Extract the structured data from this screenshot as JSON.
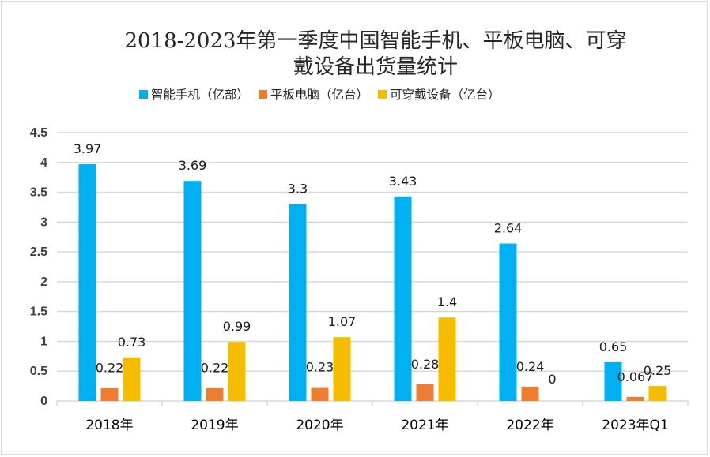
{
  "chart_data": {
    "type": "bar",
    "title": "2018-2023年第一季度中国智能手机、平板电脑、可穿戴设备出货量统计",
    "title_lines": [
      "2018-2023年第一季度中国智能手机、平板电脑、可穿",
      "戴设备出货量统计"
    ],
    "xlabel": "",
    "ylabel": "",
    "categories": [
      "2018年",
      "2019年",
      "2020年",
      "2021年",
      "2022年",
      "2023年Q1"
    ],
    "series": [
      {
        "name": "智能手机（亿部）",
        "color": "#00b0f0",
        "values": [
          3.97,
          3.69,
          3.3,
          3.43,
          2.64,
          0.65
        ],
        "labels": [
          "3.97",
          "3.69",
          "3.3",
          "3.43",
          "2.64",
          "0.65"
        ]
      },
      {
        "name": "平板电脑（亿台）",
        "color": "#ed7d31",
        "values": [
          0.22,
          0.22,
          0.23,
          0.28,
          0.24,
          0.067
        ],
        "labels": [
          "0.22",
          "0.22",
          "0.23",
          "0.28",
          "0.24",
          "0.067"
        ]
      },
      {
        "name": "可穿戴设备（亿台）",
        "color": "#f5bd00",
        "values": [
          0.73,
          0.99,
          1.07,
          1.4,
          0,
          0.25
        ],
        "labels": [
          "0.73",
          "0.99",
          "1.07",
          "1.4",
          "0",
          "0.25"
        ]
      }
    ],
    "ylim": [
      0,
      4.5
    ],
    "yticks": [
      "0",
      "0.5",
      "1",
      "1.5",
      "2",
      "2.5",
      "3",
      "3.5",
      "4",
      "4.5"
    ],
    "grid": true,
    "legend_position": "top"
  }
}
